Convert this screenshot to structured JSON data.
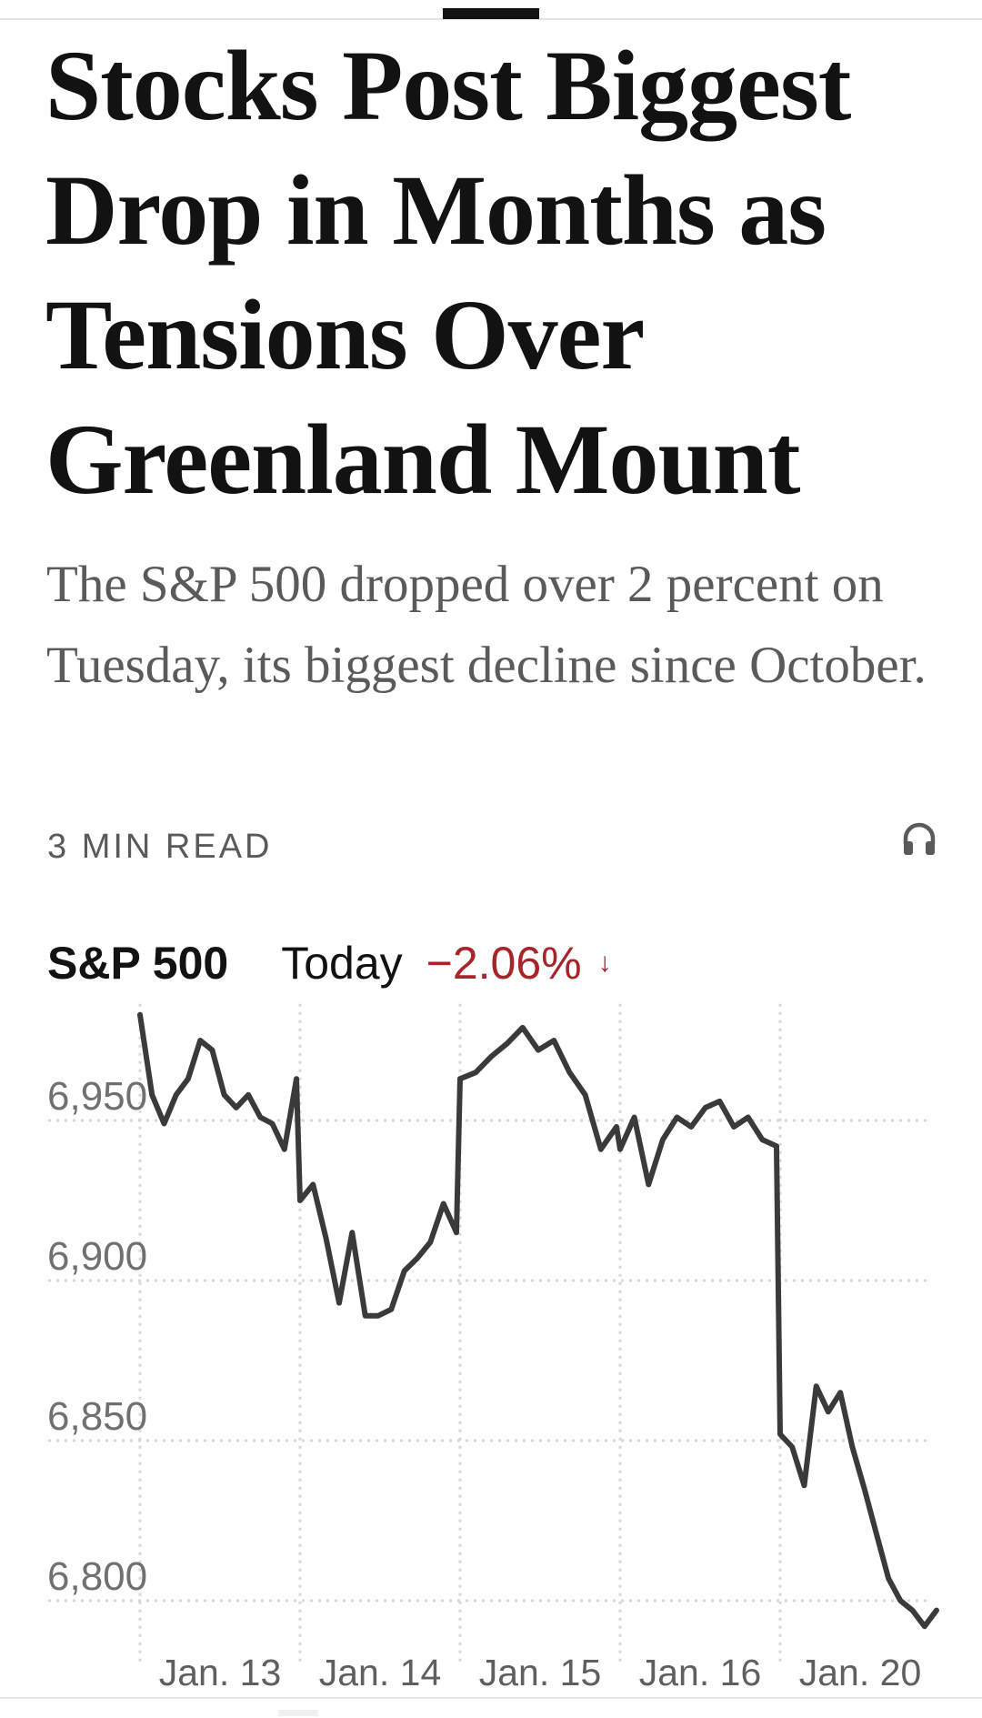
{
  "article": {
    "headline": "Stocks Post Biggest Drop in Months as Tensions Over Greenland Mount",
    "summary": "The S&P 500 dropped over 2 percent on Tuesday, its biggest decline since October.",
    "read_time": "3 MIN READ",
    "listen_icon": "headphones-icon"
  },
  "chart_header": {
    "index": "S&P 500",
    "period": "Today",
    "change": "−2.06%",
    "arrow": "↓",
    "change_color": "#a8232a"
  },
  "chart_data": {
    "type": "line",
    "categories": [
      "Jan. 13",
      "Jan. 14",
      "Jan. 15",
      "Jan. 16",
      "Jan. 20"
    ],
    "series": [
      {
        "color": "#3a3a3a",
        "values_by_day": [
          [
            6983,
            6958,
            6949,
            6958,
            6963,
            6975,
            6972,
            6958,
            6954,
            6958,
            6951,
            6949,
            6941,
            6963
          ],
          [
            6925,
            6930,
            6913,
            6893,
            6915,
            6889,
            6889,
            6891,
            6903,
            6907,
            6912,
            6924,
            6915
          ],
          [
            6963,
            6965,
            6970,
            6974,
            6979,
            6972,
            6975,
            6965,
            6958,
            6941,
            6948
          ],
          [
            6941,
            6951,
            6930,
            6944,
            6951,
            6948,
            6954,
            6956,
            6948,
            6951,
            6944,
            6942
          ],
          [
            6852,
            6848,
            6836,
            6867,
            6859,
            6865,
            6848,
            6835,
            6821,
            6807,
            6800,
            6797,
            6792,
            6797
          ]
        ]
      }
    ],
    "yticks": [
      6950,
      6900,
      6850,
      6800
    ],
    "ytick_labels": [
      "6,950",
      "6,900",
      "6,850",
      "6,800"
    ],
    "ylim": [
      6789,
      6985
    ],
    "grid": true,
    "grid_style": "dotted"
  }
}
